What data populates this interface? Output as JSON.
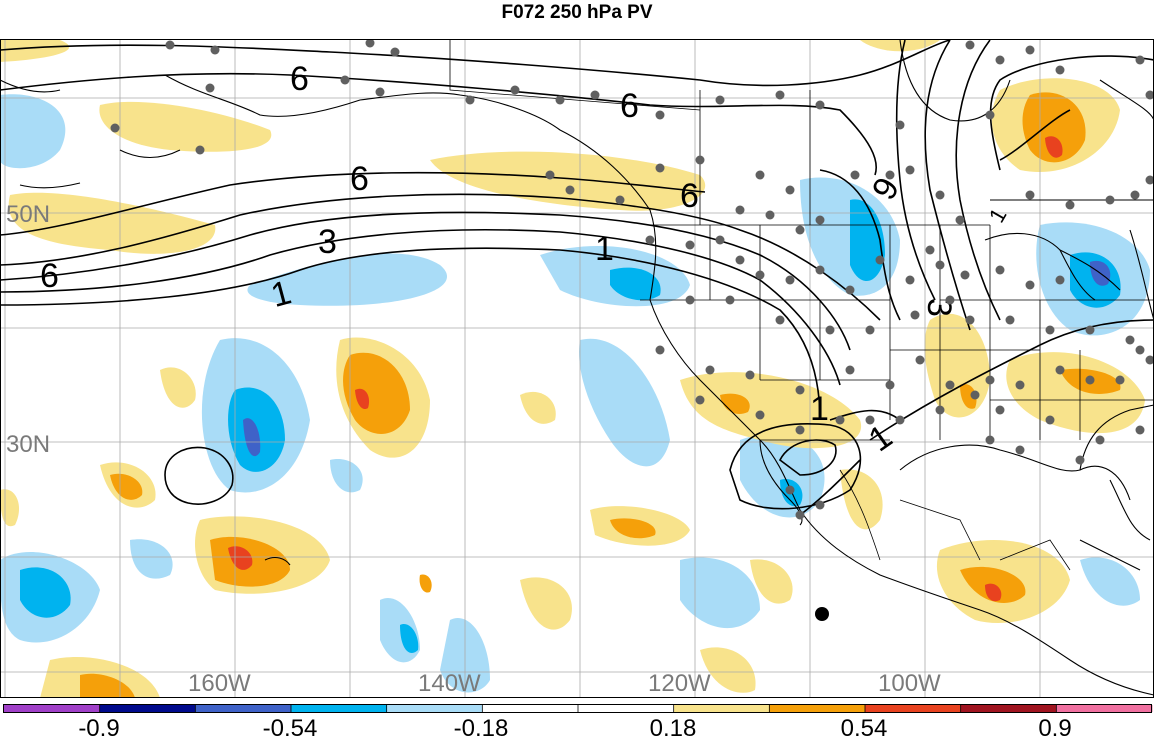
{
  "title": "F072 250 hPa PV",
  "map": {
    "lat_labels": [
      {
        "text": "50N",
        "lat": 50
      },
      {
        "text": "30N",
        "lat": 30
      }
    ],
    "lon_labels": [
      {
        "text": "160W",
        "lon": -160
      },
      {
        "text": "140W",
        "lon": -140
      },
      {
        "text": "120W",
        "lon": -120
      },
      {
        "text": "100W",
        "lon": -100
      }
    ],
    "contour_labels": [
      "6",
      "6",
      "6",
      "6",
      "6",
      "3",
      "1",
      "1",
      "1",
      "1",
      "3",
      "6",
      "1"
    ]
  },
  "colorbar": {
    "tick_labels": [
      "-0.9",
      "-0.54",
      "-0.18",
      "0.18",
      "0.54",
      "0.9"
    ],
    "colors": [
      "#a040c8",
      "#000a8c",
      "#3f62c8",
      "#00b3ef",
      "#a9dcf7",
      "#ffffff",
      "#ffffff",
      "#f8e38c",
      "#f5a00a",
      "#e8421f",
      "#a01420",
      "#f070a0"
    ]
  },
  "colors": {
    "light_blue": "#a9dcf7",
    "mid_blue": "#00b3ef",
    "dark_blue": "#3f62c8",
    "light_yellow": "#f8e38c",
    "orange": "#f5a00a",
    "red": "#e8421f",
    "station": "#606060"
  }
}
